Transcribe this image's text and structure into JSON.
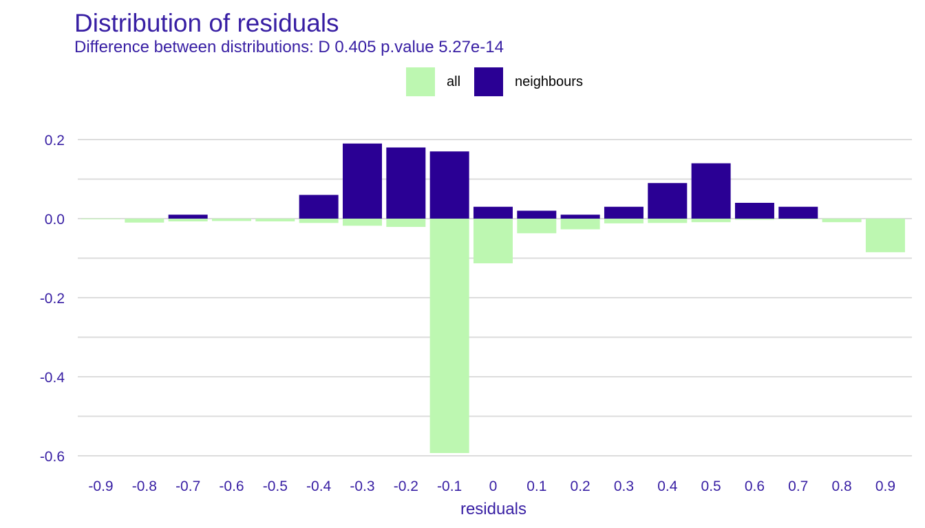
{
  "colors": {
    "accent": "#371ea3",
    "all": "#bdf7b1",
    "neighbours": "#2a0094",
    "grid": "#dcdcdc"
  },
  "chart_data": {
    "type": "bar",
    "title": "Distribution of residuals",
    "subtitle": "Difference between distributions: D 0.405 p.value 5.27e-14",
    "xlabel": "residuals",
    "ylabel": "",
    "categories": [
      "-0.9",
      "-0.8",
      "-0.7",
      "-0.6",
      "-0.5",
      "-0.4",
      "-0.3",
      "-0.2",
      "-0.1",
      "0",
      "0.1",
      "0.2",
      "0.3",
      "0.4",
      "0.5",
      "0.6",
      "0.7",
      "0.8",
      "0.9"
    ],
    "series": [
      {
        "name": "all",
        "color": "#bdf7b1",
        "values": [
          -0.001,
          -0.01,
          -0.007,
          -0.006,
          -0.007,
          -0.011,
          -0.018,
          -0.021,
          -0.593,
          -0.113,
          -0.037,
          -0.027,
          -0.012,
          -0.011,
          -0.009,
          -0.003,
          -0.001,
          -0.009,
          -0.085
        ]
      },
      {
        "name": "neighbours",
        "color": "#2a0094",
        "values": [
          0,
          0,
          0.01,
          0,
          0,
          0.06,
          0.19,
          0.18,
          0.17,
          0.03,
          0.02,
          0.01,
          0.03,
          0.09,
          0.14,
          0.04,
          0.03,
          0,
          0
        ]
      }
    ],
    "yticks": [
      "0.2",
      "0.0",
      "-0.2",
      "-0.4",
      "-0.6"
    ],
    "ytick_values": [
      0.2,
      0.0,
      -0.2,
      -0.4,
      -0.6
    ],
    "ylim": [
      -0.6,
      0.2
    ],
    "grid": true,
    "legend": "top"
  }
}
